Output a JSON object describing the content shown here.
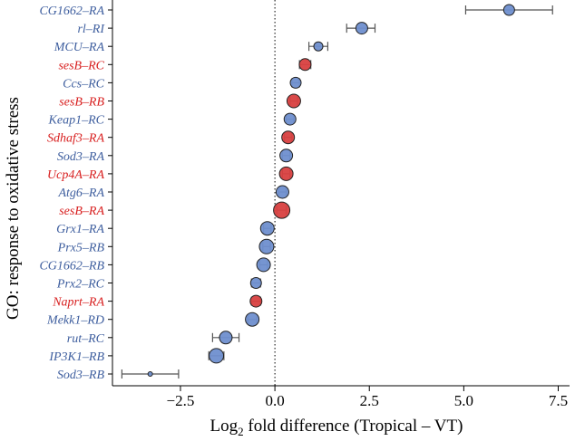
{
  "chart_data": {
    "type": "dot-errorbar",
    "title": "",
    "xlabel_prefix": "Log",
    "xlabel_subscript": "2",
    "xlabel_suffix": " fold difference (Tropical – VT)",
    "ylabel": "GO: response to oxidative stress",
    "xlim": [
      -4.3,
      7.8
    ],
    "xticks": [
      -2.5,
      0.0,
      2.5,
      5.0,
      7.5
    ],
    "xtick_labels": [
      "−2.5",
      "0.0",
      "2.5",
      "5.0",
      "7.5"
    ],
    "reference_line": 0,
    "colors": {
      "blue": "#6f8fcf",
      "red": "#d84040",
      "blue_label": "#3f5f9f",
      "red_label": "#d82020"
    },
    "genes": [
      {
        "label": "CG1662–RA",
        "value": 6.2,
        "ci": [
          5.05,
          7.35
        ],
        "color": "blue",
        "size": 6
      },
      {
        "label": "rl–RI",
        "value": 2.3,
        "ci": [
          1.9,
          2.65
        ],
        "color": "blue",
        "size": 6.5
      },
      {
        "label": "MCU–RA",
        "value": 1.15,
        "ci": [
          0.9,
          1.4
        ],
        "color": "blue",
        "size": 5
      },
      {
        "label": "sesB–RC",
        "value": 0.8,
        "ci": [
          0.65,
          0.95
        ],
        "color": "red",
        "size": 6.5
      },
      {
        "label": "Ccs–RC",
        "value": 0.55,
        "ci": [
          0.45,
          0.65
        ],
        "color": "blue",
        "size": 6
      },
      {
        "label": "sesB–RB",
        "value": 0.5,
        "ci": [
          0.4,
          0.6
        ],
        "color": "red",
        "size": 7.5
      },
      {
        "label": "Keap1–RC",
        "value": 0.4,
        "ci": [
          0.3,
          0.5
        ],
        "color": "blue",
        "size": 6.5
      },
      {
        "label": "Sdhaf3–RA",
        "value": 0.35,
        "ci": [
          0.25,
          0.45
        ],
        "color": "red",
        "size": 7
      },
      {
        "label": "Sod3–RA",
        "value": 0.3,
        "ci": [
          0.2,
          0.4
        ],
        "color": "blue",
        "size": 7
      },
      {
        "label": "Ucp4A–RA",
        "value": 0.3,
        "ci": [
          0.2,
          0.4
        ],
        "color": "red",
        "size": 7.5
      },
      {
        "label": "Atg6–RA",
        "value": 0.2,
        "ci": [
          0.1,
          0.3
        ],
        "color": "blue",
        "size": 7
      },
      {
        "label": "sesB–RA",
        "value": 0.18,
        "ci": [
          0.05,
          0.3
        ],
        "color": "red",
        "size": 9
      },
      {
        "label": "Grx1–RA",
        "value": -0.2,
        "ci": [
          -0.3,
          -0.1
        ],
        "color": "blue",
        "size": 7.5
      },
      {
        "label": "Prx5–RB",
        "value": -0.22,
        "ci": [
          -0.32,
          -0.12
        ],
        "color": "blue",
        "size": 8
      },
      {
        "label": "CG1662–RB",
        "value": -0.3,
        "ci": [
          -0.4,
          -0.2
        ],
        "color": "blue",
        "size": 7.5
      },
      {
        "label": "Prx2–RC",
        "value": -0.5,
        "ci": [
          -0.62,
          -0.38
        ],
        "color": "blue",
        "size": 6
      },
      {
        "label": "Naprt–RA",
        "value": -0.5,
        "ci": [
          -0.62,
          -0.38
        ],
        "color": "red",
        "size": 6.5
      },
      {
        "label": "Mekk1–RD",
        "value": -0.6,
        "ci": [
          -0.72,
          -0.48
        ],
        "color": "blue",
        "size": 7.5
      },
      {
        "label": "rut–RC",
        "value": -1.3,
        "ci": [
          -1.65,
          -0.95
        ],
        "color": "blue",
        "size": 7
      },
      {
        "label": "IP3K1–RB",
        "value": -1.55,
        "ci": [
          -1.75,
          -1.35
        ],
        "color": "blue",
        "size": 8
      },
      {
        "label": "Sod3–RB",
        "value": -3.3,
        "ci": [
          -4.05,
          -2.55
        ],
        "color": "blue",
        "size": 2.5
      }
    ]
  }
}
